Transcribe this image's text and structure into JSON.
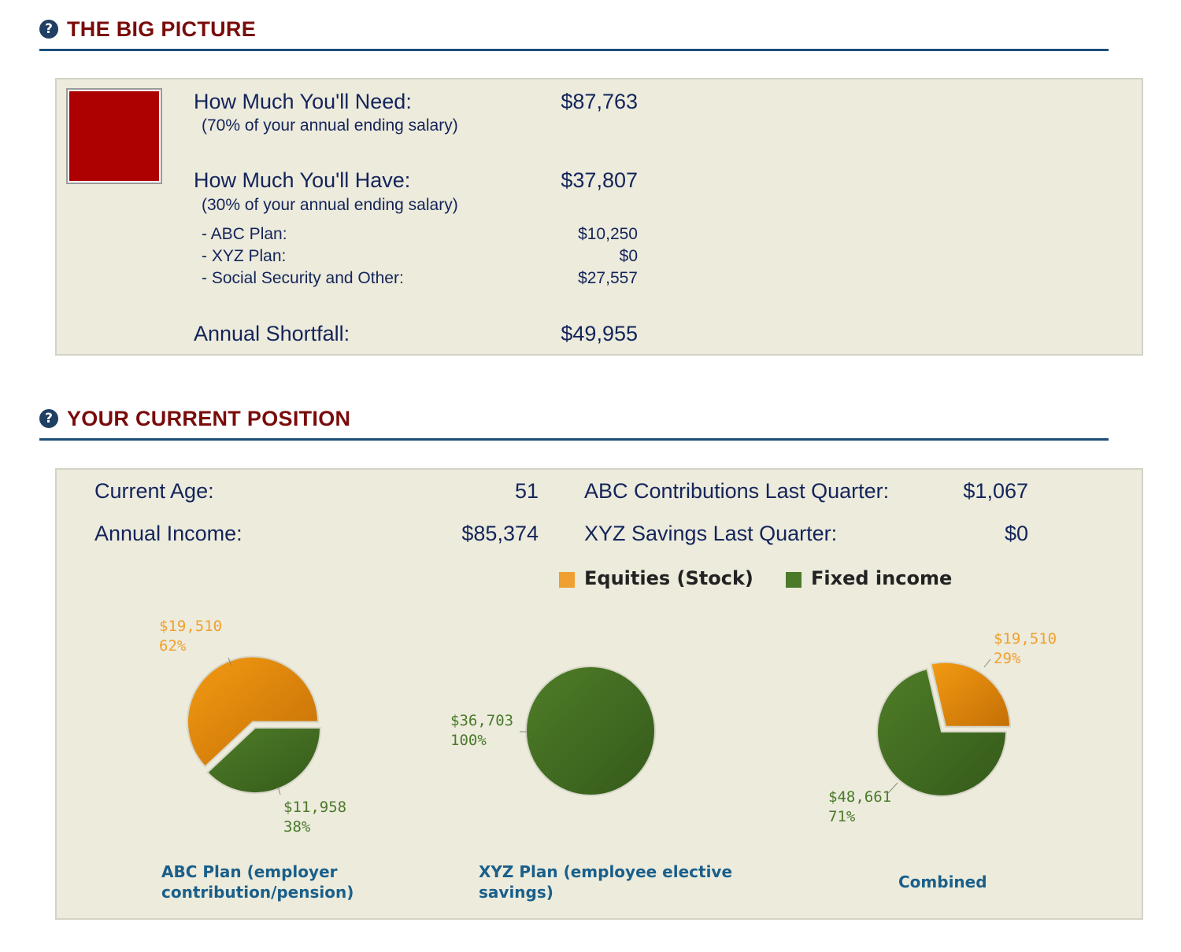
{
  "big_picture": {
    "title": "THE BIG PICTURE",
    "need_label": "How Much You'll Need:",
    "need_note": "(70% of your annual ending salary)",
    "need_value": "$87,763",
    "have_label": "How Much You'll Have:",
    "have_note": "(30% of your annual ending salary)",
    "have_value": "$37,807",
    "breakdown": [
      {
        "label": "- ABC Plan:",
        "value": "$10,250"
      },
      {
        "label": "- XYZ Plan:",
        "value": "$0"
      },
      {
        "label": "- Social Security and Other:",
        "value": "$27,557"
      }
    ],
    "shortfall_label": "Annual Shortfall:",
    "shortfall_value": "$49,955",
    "status_color": "#ad0000"
  },
  "current_position": {
    "title": "YOUR CURRENT POSITION",
    "age_label": "Current Age:",
    "age_value": "51",
    "income_label": "Annual Income:",
    "income_value": "$85,374",
    "abc_contrib_label": "ABC Contributions Last Quarter:",
    "abc_contrib_value": "$1,067",
    "xyz_savings_label": "XYZ Savings Last Quarter:",
    "xyz_savings_value": "$0"
  },
  "icons": {
    "help": "question-circle-icon"
  },
  "colors": {
    "equities": "#f0a030",
    "fixed_income": "#4a7a2a",
    "title": "#7a0b0b",
    "rule": "#1d4e7a"
  },
  "chart_data": [
    {
      "type": "pie",
      "title": "ABC Plan (employer contribution/pension)",
      "legend": [
        "Equities (Stock)",
        "Fixed income"
      ],
      "slices": [
        {
          "name": "Equities (Stock)",
          "value": 19510,
          "label": "$19,510",
          "pct": "62%"
        },
        {
          "name": "Fixed income",
          "value": 11958,
          "label": "$11,958",
          "pct": "38%"
        }
      ]
    },
    {
      "type": "pie",
      "title": "XYZ Plan (employee elective savings)",
      "legend": [
        "Equities (Stock)",
        "Fixed income"
      ],
      "slices": [
        {
          "name": "Fixed income",
          "value": 36703,
          "label": "$36,703",
          "pct": "100%"
        }
      ]
    },
    {
      "type": "pie",
      "title": "Combined",
      "legend": [
        "Equities (Stock)",
        "Fixed income"
      ],
      "slices": [
        {
          "name": "Equities (Stock)",
          "value": 19510,
          "label": "$19,510",
          "pct": "29%"
        },
        {
          "name": "Fixed income",
          "value": 48661,
          "label": "$48,661",
          "pct": "71%"
        }
      ]
    }
  ]
}
